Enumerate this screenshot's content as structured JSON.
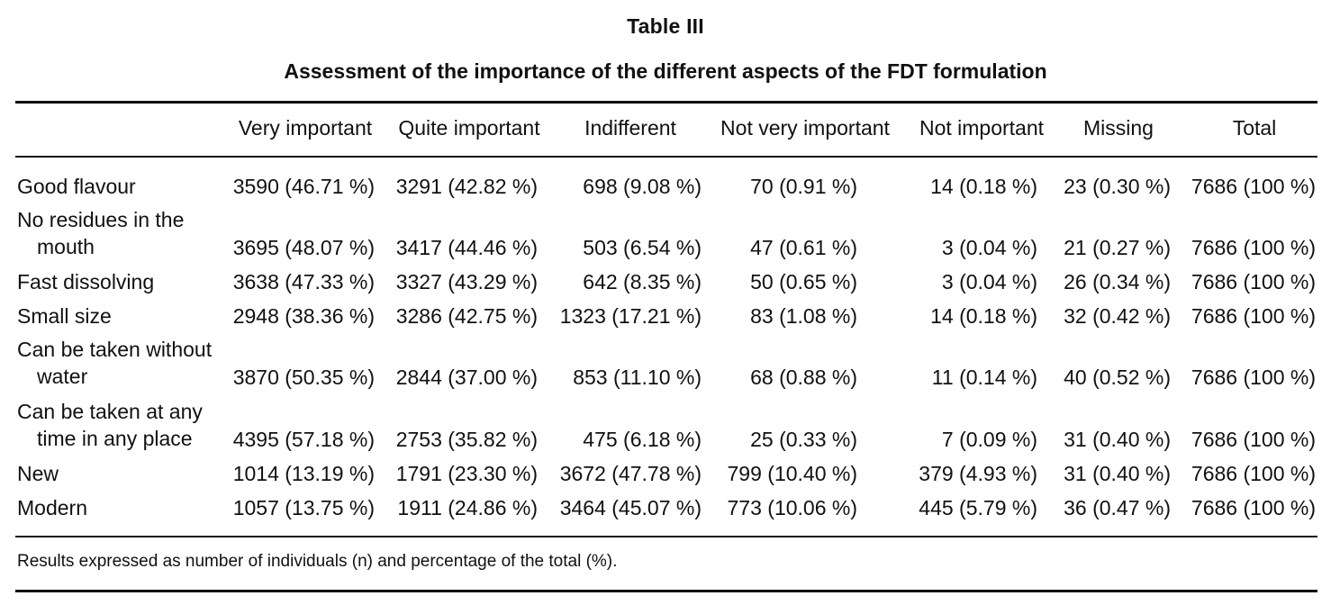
{
  "title": "Table III",
  "caption": "Assessment of the importance of the different aspects of the FDT formulation",
  "columns": [
    "Very important",
    "Quite important",
    "Indifferent",
    "Not very important",
    "Not important",
    "Missing",
    "Total"
  ],
  "rows": [
    {
      "label": [
        "Good flavour"
      ],
      "values": [
        "3590 (46.71 %)",
        "3291 (42.82 %)",
        "698 (9.08 %)",
        "70 (0.91 %)",
        "14 (0.18 %)",
        "23 (0.30 %)",
        "7686 (100 %)"
      ]
    },
    {
      "label": [
        "No residues in the",
        "mouth"
      ],
      "values": [
        "3695 (48.07 %)",
        "3417 (44.46 %)",
        "503 (6.54 %)",
        "47 (0.61 %)",
        "3 (0.04 %)",
        "21 (0.27 %)",
        "7686 (100 %)"
      ]
    },
    {
      "label": [
        "Fast dissolving"
      ],
      "values": [
        "3638 (47.33 %)",
        "3327 (43.29 %)",
        "642 (8.35 %)",
        "50 (0.65 %)",
        "3 (0.04 %)",
        "26 (0.34 %)",
        "7686 (100 %)"
      ]
    },
    {
      "label": [
        "Small size"
      ],
      "values": [
        "2948 (38.36 %)",
        "3286 (42.75 %)",
        "1323 (17.21 %)",
        "83 (1.08 %)",
        "14 (0.18 %)",
        "32 (0.42 %)",
        "7686 (100 %)"
      ]
    },
    {
      "label": [
        "Can be taken without",
        "water"
      ],
      "values": [
        "3870 (50.35 %)",
        "2844 (37.00 %)",
        "853 (11.10 %)",
        "68 (0.88 %)",
        "11 (0.14 %)",
        "40 (0.52 %)",
        "7686 (100 %)"
      ]
    },
    {
      "label": [
        "Can be taken at any",
        "time in any place"
      ],
      "values": [
        "4395 (57.18 %)",
        "2753 (35.82 %)",
        "475 (6.18 %)",
        "25 (0.33 %)",
        "7 (0.09 %)",
        "31 (0.40 %)",
        "7686 (100 %)"
      ]
    },
    {
      "label": [
        "New"
      ],
      "values": [
        "1014 (13.19 %)",
        "1791 (23.30 %)",
        "3672 (47.78 %)",
        "799 (10.40 %)",
        "379 (4.93 %)",
        "31 (0.40 %)",
        "7686 (100 %)"
      ]
    },
    {
      "label": [
        "Modern"
      ],
      "values": [
        "1057 (13.75 %)",
        "1911 (24.86 %)",
        "3464 (45.07 %)",
        "773 (10.06 %)",
        "445 (5.79 %)",
        "36 (0.47 %)",
        "7686 (100 %)"
      ]
    }
  ],
  "footnote": "Results expressed as number of individuals (n) and percentage of the total (%)."
}
